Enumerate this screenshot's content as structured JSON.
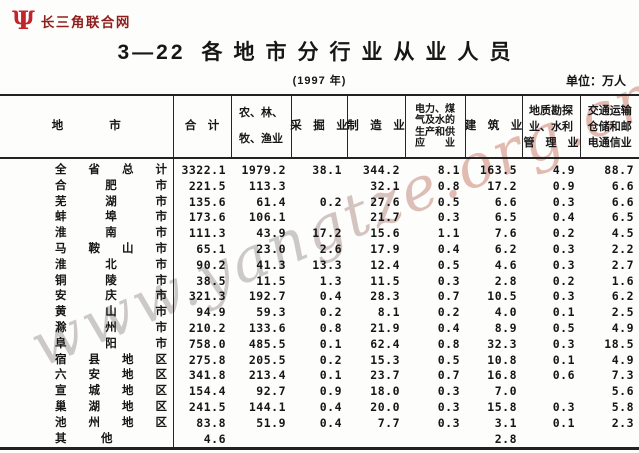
{
  "brand": {
    "logo_icon": "Ψ",
    "name": "长三角联合网"
  },
  "header": {
    "table_no": "3—22",
    "title": "各地市分行业从业人员",
    "year_note": "(1997 年)",
    "unit_note": "单位：万人"
  },
  "watermark": {
    "text": "www.yangtze.org.cn"
  },
  "colors": {
    "brand_red": "#c3232b",
    "table_line": "#222222",
    "watermark_gray": "#c7c4c3",
    "watermark_pink": "#dfb3a8"
  },
  "table": {
    "columns": [
      {
        "id": "region",
        "lines": [
          "地　　　　市"
        ]
      },
      {
        "id": "total",
        "lines": [
          "合　计"
        ]
      },
      {
        "id": "agriculture",
        "lines": [
          "农、林、",
          "牧、渔业"
        ]
      },
      {
        "id": "mining",
        "lines": [
          "采　掘　业"
        ]
      },
      {
        "id": "manufacturing",
        "lines": [
          "制　造　业"
        ]
      },
      {
        "id": "utilities",
        "lines": [
          "电力、煤",
          "气及水的",
          "生产和供",
          "应　　业"
        ]
      },
      {
        "id": "construction",
        "lines": [
          "建　筑　业"
        ]
      },
      {
        "id": "geology-water",
        "lines": [
          "地质勘探",
          "业、水利",
          "管　理　业"
        ]
      },
      {
        "id": "transport-post",
        "lines": [
          "交通运输",
          "仓储和邮",
          "电通信业"
        ]
      }
    ],
    "rows": [
      {
        "label": "全省总计",
        "values": [
          "3322.1",
          "1979.2",
          "38.1",
          "344.2",
          "8.1",
          "163.5",
          "4.9",
          "88.7"
        ]
      },
      {
        "label": "合肥市",
        "values": [
          "221.5",
          "113.3",
          "",
          "32.1",
          "0.8",
          "17.2",
          "0.9",
          "6.6"
        ]
      },
      {
        "label": "芜湖市",
        "values": [
          "135.6",
          "61.4",
          "0.2",
          "27.6",
          "0.5",
          "6.6",
          "0.3",
          "6.6"
        ]
      },
      {
        "label": "蚌埠市",
        "values": [
          "173.6",
          "106.1",
          "",
          "21.7",
          "0.3",
          "6.5",
          "0.4",
          "6.5"
        ]
      },
      {
        "label": "淮南市",
        "values": [
          "111.3",
          "43.9",
          "17.2",
          "15.6",
          "1.1",
          "7.6",
          "0.2",
          "4.5"
        ]
      },
      {
        "label": "马鞍山市",
        "values": [
          "65.1",
          "23.0",
          "2.6",
          "17.9",
          "0.4",
          "6.2",
          "0.3",
          "2.2"
        ]
      },
      {
        "label": "淮北市",
        "values": [
          "90.2",
          "41.3",
          "13.3",
          "12.4",
          "0.5",
          "4.6",
          "0.3",
          "2.7"
        ]
      },
      {
        "label": "铜陵市",
        "values": [
          "38.5",
          "11.5",
          "1.3",
          "11.5",
          "0.3",
          "2.8",
          "0.2",
          "1.6"
        ]
      },
      {
        "label": "安庆市",
        "values": [
          "321.3",
          "192.7",
          "0.4",
          "28.3",
          "0.7",
          "10.5",
          "0.3",
          "6.2"
        ]
      },
      {
        "label": "黄山市",
        "values": [
          "94.9",
          "59.3",
          "0.2",
          "8.1",
          "0.2",
          "4.0",
          "0.1",
          "2.5"
        ]
      },
      {
        "label": "滁州市",
        "values": [
          "210.2",
          "133.6",
          "0.8",
          "21.9",
          "0.4",
          "8.9",
          "0.5",
          "4.9"
        ]
      },
      {
        "label": "阜阳市",
        "values": [
          "758.0",
          "485.5",
          "0.1",
          "62.4",
          "0.8",
          "32.3",
          "0.3",
          "18.5"
        ]
      },
      {
        "label": "宿县地区",
        "values": [
          "275.8",
          "205.5",
          "0.2",
          "15.3",
          "0.5",
          "10.8",
          "0.1",
          "4.9"
        ]
      },
      {
        "label": "六安地区",
        "values": [
          "341.8",
          "213.4",
          "0.1",
          "23.7",
          "0.7",
          "16.8",
          "0.6",
          "7.3"
        ]
      },
      {
        "label": "宣城地区",
        "values": [
          "154.4",
          "92.7",
          "0.9",
          "18.0",
          "0.3",
          "7.0",
          "",
          "5.6"
        ]
      },
      {
        "label": "巢湖地区",
        "values": [
          "241.5",
          "144.1",
          "0.4",
          "20.0",
          "0.3",
          "15.8",
          "0.3",
          "5.8"
        ]
      },
      {
        "label": "池州地区",
        "values": [
          "83.8",
          "51.9",
          "0.4",
          "7.7",
          "0.3",
          "3.1",
          "0.1",
          "2.3"
        ]
      },
      {
        "label": "其　　　他",
        "justify": false,
        "values": [
          "4.6",
          "",
          "",
          "",
          "",
          "2.8",
          "",
          ""
        ]
      }
    ]
  }
}
